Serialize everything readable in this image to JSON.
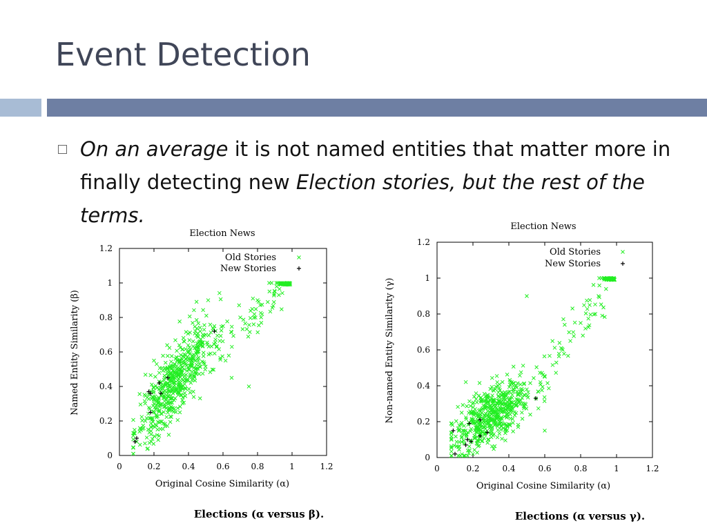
{
  "slide": {
    "title": "Event Detection",
    "bullet": {
      "seg1": "On an average",
      "seg2": " it is not named entities that matter more in finally detecting new ",
      "seg3": "Election stories, but the rest of  the terms."
    }
  },
  "colors": {
    "old": "#22ee22",
    "new": "#000000",
    "title": "#404658",
    "band_dark": "#6e7fa3",
    "band_light": "#a8bcd5"
  },
  "chart_data": [
    {
      "type": "scatter",
      "title": "Election News",
      "xlabel": "Original Cosine Similarity (α)",
      "ylabel": "Named Entity Similarity (β)",
      "caption": "Elections (α versus β).",
      "xlim": [
        0,
        1.2
      ],
      "ylim": [
        0,
        1.2
      ],
      "xticks": [
        "0",
        "0.2",
        "0.4",
        "0.6",
        "0.8",
        "1",
        "1.2"
      ],
      "yticks": [
        "0",
        "0.2",
        "0.4",
        "0.6",
        "0.8",
        "1",
        "1.2"
      ],
      "legend_position": "top-right",
      "series": [
        {
          "name": "Old Stories",
          "marker": "x",
          "cloud_center": [
            0.32,
            0.48
          ],
          "points_estimate": [
            [
              0.1,
              0.08
            ],
            [
              0.15,
              0.2
            ],
            [
              0.2,
              0.3
            ],
            [
              0.25,
              0.4
            ],
            [
              0.3,
              0.5
            ],
            [
              0.35,
              0.55
            ],
            [
              0.4,
              0.6
            ],
            [
              0.45,
              0.65
            ],
            [
              0.5,
              0.7
            ],
            [
              0.55,
              0.75
            ],
            [
              0.6,
              0.75
            ],
            [
              0.7,
              0.8
            ],
            [
              0.8,
              0.9
            ],
            [
              0.9,
              0.95
            ],
            [
              0.95,
              1.0
            ],
            [
              0.97,
              1.0
            ],
            [
              0.65,
              0.45
            ],
            [
              0.75,
              0.4
            ],
            [
              0.2,
              0.55
            ],
            [
              0.35,
              0.25
            ]
          ]
        },
        {
          "name": "New Stories",
          "marker": "+",
          "points": [
            [
              0.09,
              0.08
            ],
            [
              0.1,
              0.1
            ],
            [
              0.17,
              0.37
            ],
            [
              0.18,
              0.36
            ],
            [
              0.18,
              0.25
            ],
            [
              0.23,
              0.42
            ],
            [
              0.24,
              0.36
            ],
            [
              0.28,
              0.45
            ],
            [
              0.55,
              0.72
            ]
          ]
        }
      ]
    },
    {
      "type": "scatter",
      "title": "Election News",
      "xlabel": "Original Cosine Similarity (α)",
      "ylabel": "Non-named Entity Similarity (γ)",
      "caption": "Elections (α versus γ).",
      "xlim": [
        0,
        1.2
      ],
      "ylim": [
        0,
        1.2
      ],
      "xticks": [
        "0",
        "0.2",
        "0.4",
        "0.6",
        "0.8",
        "1",
        "1.2"
      ],
      "yticks": [
        "0",
        "0.2",
        "0.4",
        "0.6",
        "0.8",
        "1",
        "1.2"
      ],
      "legend_position": "top-right",
      "series": [
        {
          "name": "Old Stories",
          "marker": "x",
          "cloud_center": [
            0.3,
            0.27
          ],
          "points_estimate": [
            [
              0.15,
              0.15
            ],
            [
              0.2,
              0.2
            ],
            [
              0.25,
              0.25
            ],
            [
              0.3,
              0.28
            ],
            [
              0.35,
              0.3
            ],
            [
              0.4,
              0.32
            ],
            [
              0.45,
              0.35
            ],
            [
              0.5,
              0.38
            ],
            [
              0.6,
              0.45
            ],
            [
              0.7,
              0.6
            ],
            [
              0.8,
              0.75
            ],
            [
              0.85,
              0.85
            ],
            [
              0.9,
              0.9
            ],
            [
              0.95,
              1.0
            ],
            [
              0.97,
              1.0
            ],
            [
              0.5,
              0.9
            ],
            [
              0.6,
              0.15
            ],
            [
              0.2,
              0.02
            ]
          ]
        },
        {
          "name": "New Stories",
          "marker": "+",
          "points": [
            [
              0.09,
              0.15
            ],
            [
              0.1,
              0.02
            ],
            [
              0.16,
              0.07
            ],
            [
              0.17,
              0.1
            ],
            [
              0.18,
              0.19
            ],
            [
              0.19,
              0.09
            ],
            [
              0.24,
              0.21
            ],
            [
              0.24,
              0.12
            ],
            [
              0.28,
              0.14
            ],
            [
              0.55,
              0.33
            ]
          ]
        }
      ]
    }
  ]
}
